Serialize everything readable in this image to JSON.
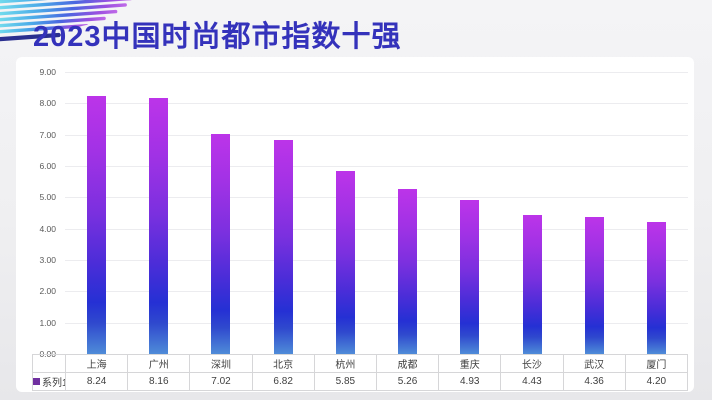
{
  "header": {
    "title": "2023中国时尚都市指数十强",
    "title_color": "#3432BB"
  },
  "chart_data": {
    "type": "bar",
    "title": "2023中国时尚都市指数十强",
    "categories": [
      "上海",
      "广州",
      "深圳",
      "北京",
      "杭州",
      "成都",
      "重庆",
      "长沙",
      "武汉",
      "厦门"
    ],
    "series": [
      {
        "name": "系列1",
        "values": [
          8.24,
          8.16,
          7.02,
          6.82,
          5.85,
          5.26,
          4.93,
          4.43,
          4.36,
          4.2
        ]
      }
    ],
    "xlabel": "",
    "ylabel": "",
    "ylim": [
      0,
      9
    ],
    "tick_step": 1,
    "tick_decimals": 2,
    "value_decimals": 2,
    "grid": true,
    "legend_position": "bottom-left",
    "data_table_shown": true
  },
  "legend": {
    "series_label": "系列1",
    "swatch_color": "#7030A0"
  },
  "colors": {
    "title": "#3432BB",
    "page_background": "#EFEFF1",
    "card_background": "#FFFFFF",
    "axis_text": "#595959",
    "table_text": "#404040",
    "grid_line": "#ECECEF",
    "table_border": "#D6D6D8",
    "bar_gradient_top": "#BC34E9",
    "bar_gradient_mid": "#4B2DD8",
    "bar_gradient_deep_blue": "#2530D4",
    "bar_gradient_bottom": "#4F8CD8",
    "decor_stripe_cyan": "#7AE6EE",
    "decor_stripe_blue": "#4BA9E8",
    "decor_stripe_violet": "#9B4FE0",
    "decor_stripe_navy": "#2A2F8F"
  }
}
